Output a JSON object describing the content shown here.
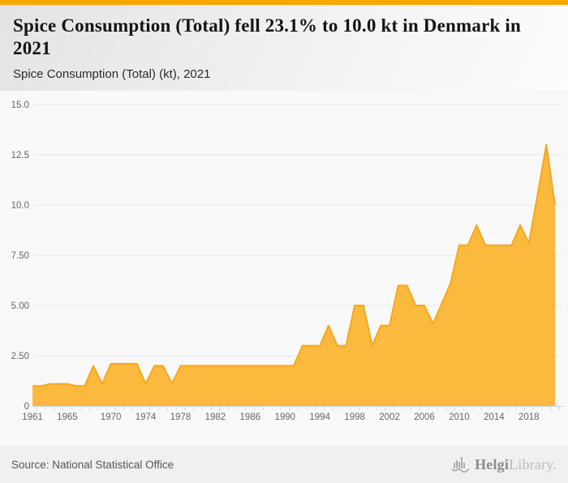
{
  "header": {
    "title": "Spice Consumption (Total) fell 23.1% to 10.0 kt in Denmark in 2021",
    "subtitle": "Spice Consumption (Total) (kt), 2021"
  },
  "footer": {
    "source": "Source: National Statistical Office",
    "logo_brand_bold": "Helgi",
    "logo_brand_light": "Library."
  },
  "colors": {
    "accent_bar": "#f5a800",
    "area_fill": "#fbba3d",
    "area_line": "#f5a71f",
    "grid_line": "#e6e6e6",
    "axis_line": "#ccd6eb",
    "tick": "#ccd6eb",
    "axis_label": "#666666"
  },
  "chart_data": {
    "type": "area",
    "title": "Spice Consumption (Total) (kt), 2021",
    "xlabel": "",
    "ylabel": "",
    "series_name": "Spice Consumption (Total) (kt)",
    "grid": true,
    "legend": false,
    "ylim": [
      0,
      15
    ],
    "yticks": [
      0,
      2.5,
      5,
      7.5,
      10,
      12.5,
      15
    ],
    "ytick_labels": [
      "0",
      "2.50",
      "5.00",
      "7.50",
      "10.0",
      "12.5",
      "15.0"
    ],
    "xtick_labels": [
      1961,
      1965,
      1970,
      1974,
      1978,
      1982,
      1986,
      1990,
      1994,
      1998,
      2002,
      2006,
      2010,
      2014,
      2018
    ],
    "x": [
      1961,
      1962,
      1963,
      1964,
      1965,
      1966,
      1967,
      1968,
      1969,
      1970,
      1971,
      1972,
      1973,
      1974,
      1975,
      1976,
      1977,
      1978,
      1979,
      1980,
      1981,
      1982,
      1983,
      1984,
      1985,
      1986,
      1987,
      1988,
      1989,
      1990,
      1991,
      1992,
      1993,
      1994,
      1995,
      1996,
      1997,
      1998,
      1999,
      2000,
      2001,
      2002,
      2003,
      2004,
      2005,
      2006,
      2007,
      2008,
      2009,
      2010,
      2011,
      2012,
      2013,
      2014,
      2015,
      2016,
      2017,
      2018,
      2019,
      2020,
      2021
    ],
    "values": [
      1.0,
      1.0,
      1.1,
      1.1,
      1.1,
      1.0,
      1.0,
      2.0,
      1.1,
      2.1,
      2.1,
      2.1,
      2.1,
      1.1,
      2.0,
      2.0,
      1.1,
      2.0,
      2.0,
      2.0,
      2.0,
      2.0,
      2.0,
      2.0,
      2.0,
      2.0,
      2.0,
      2.0,
      2.0,
      2.0,
      2.0,
      3.0,
      3.0,
      3.0,
      4.0,
      3.0,
      3.0,
      5.0,
      5.0,
      3.0,
      4.0,
      4.0,
      6.0,
      6.0,
      5.0,
      5.0,
      4.1,
      5.1,
      6.1,
      8.0,
      8.0,
      9.0,
      8.0,
      8.0,
      8.0,
      8.0,
      9.0,
      8.1,
      10.5,
      13.0,
      10.0
    ]
  }
}
